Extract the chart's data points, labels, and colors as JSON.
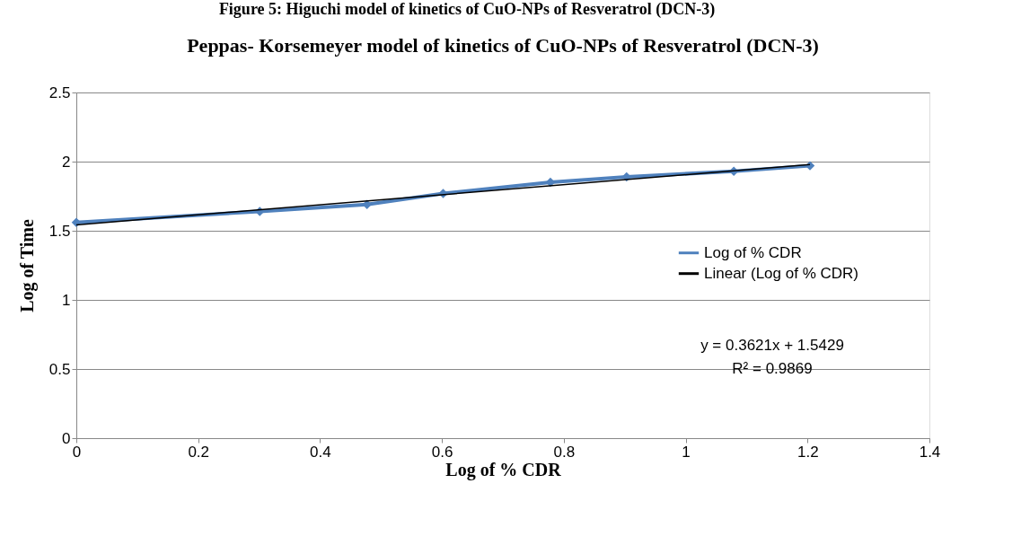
{
  "chart_data": {
    "type": "line",
    "title": "Peppas- Korsemeyer model of kinetics of CuO-NPs of Resveratrol (DCN-3)",
    "xlabel": "Log of % CDR",
    "ylabel": "Log of Time",
    "annotations": [
      "Figure 5: Higuchi model of kinetics of CuO-NPs of Resveratrol (DCN-3)",
      "y = 0.3621x + 1.5429",
      "R² = 0.9869"
    ],
    "series": [
      {
        "name": "Log of % CDR",
        "color": "#4f81bd",
        "marker": "diamond",
        "x": [
          0,
          0.301,
          0.477,
          0.602,
          0.778,
          0.903,
          1.079,
          1.204
        ],
        "values": [
          1.56,
          1.64,
          1.69,
          1.77,
          1.85,
          1.89,
          1.93,
          1.97
        ]
      },
      {
        "name": "Linear (Log of % CDR)",
        "color": "#000000",
        "marker": "none",
        "x": [
          0,
          1.204
        ],
        "values": [
          1.543,
          1.979
        ]
      }
    ],
    "xlim": [
      0,
      1.4
    ],
    "xticks": [
      0,
      0.2,
      0.4,
      0.6,
      0.8,
      1,
      1.2,
      1.4
    ],
    "ylim": [
      0,
      2.5
    ],
    "yticks": [
      0,
      0.5,
      1,
      1.5,
      2,
      2.5
    ],
    "grid": "y",
    "legend": "right",
    "line_style": "solid"
  }
}
